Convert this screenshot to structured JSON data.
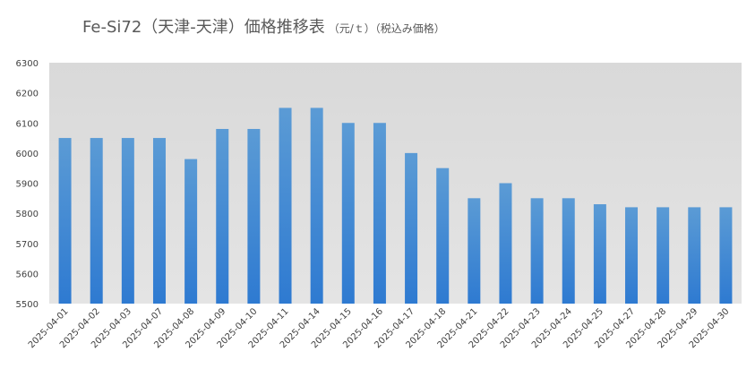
{
  "chart_data": {
    "type": "bar",
    "title": "Fe-Si72（天津-天津）価格推移表",
    "subtitle": "（元/ｔ）（税込み価格）",
    "categories": [
      "2025-04-01",
      "2025-04-02",
      "2025-04-03",
      "2025-04-07",
      "2025-04-08",
      "2025-04-09",
      "2025-04-10",
      "2025-04-11",
      "2025-04-14",
      "2025-04-15",
      "2025-04-16",
      "2025-04-17",
      "2025-04-18",
      "2025-04-21",
      "2025-04-22",
      "2025-04-23",
      "2025-04-24",
      "2025-04-25",
      "2025-04-27",
      "2025-04-28",
      "2025-04-29",
      "2025-04-30"
    ],
    "values": [
      6050,
      6050,
      6050,
      6050,
      5980,
      6080,
      6080,
      6150,
      6150,
      6100,
      6100,
      6000,
      5950,
      5850,
      5900,
      5850,
      5850,
      5830,
      5820,
      5820,
      5820,
      5820
    ],
    "color": "#4a90d9",
    "ylim": [
      5500,
      6300
    ],
    "yticks": [
      5500,
      5600,
      5700,
      5800,
      5900,
      6000,
      6100,
      6200,
      6300
    ],
    "grid": false
  }
}
